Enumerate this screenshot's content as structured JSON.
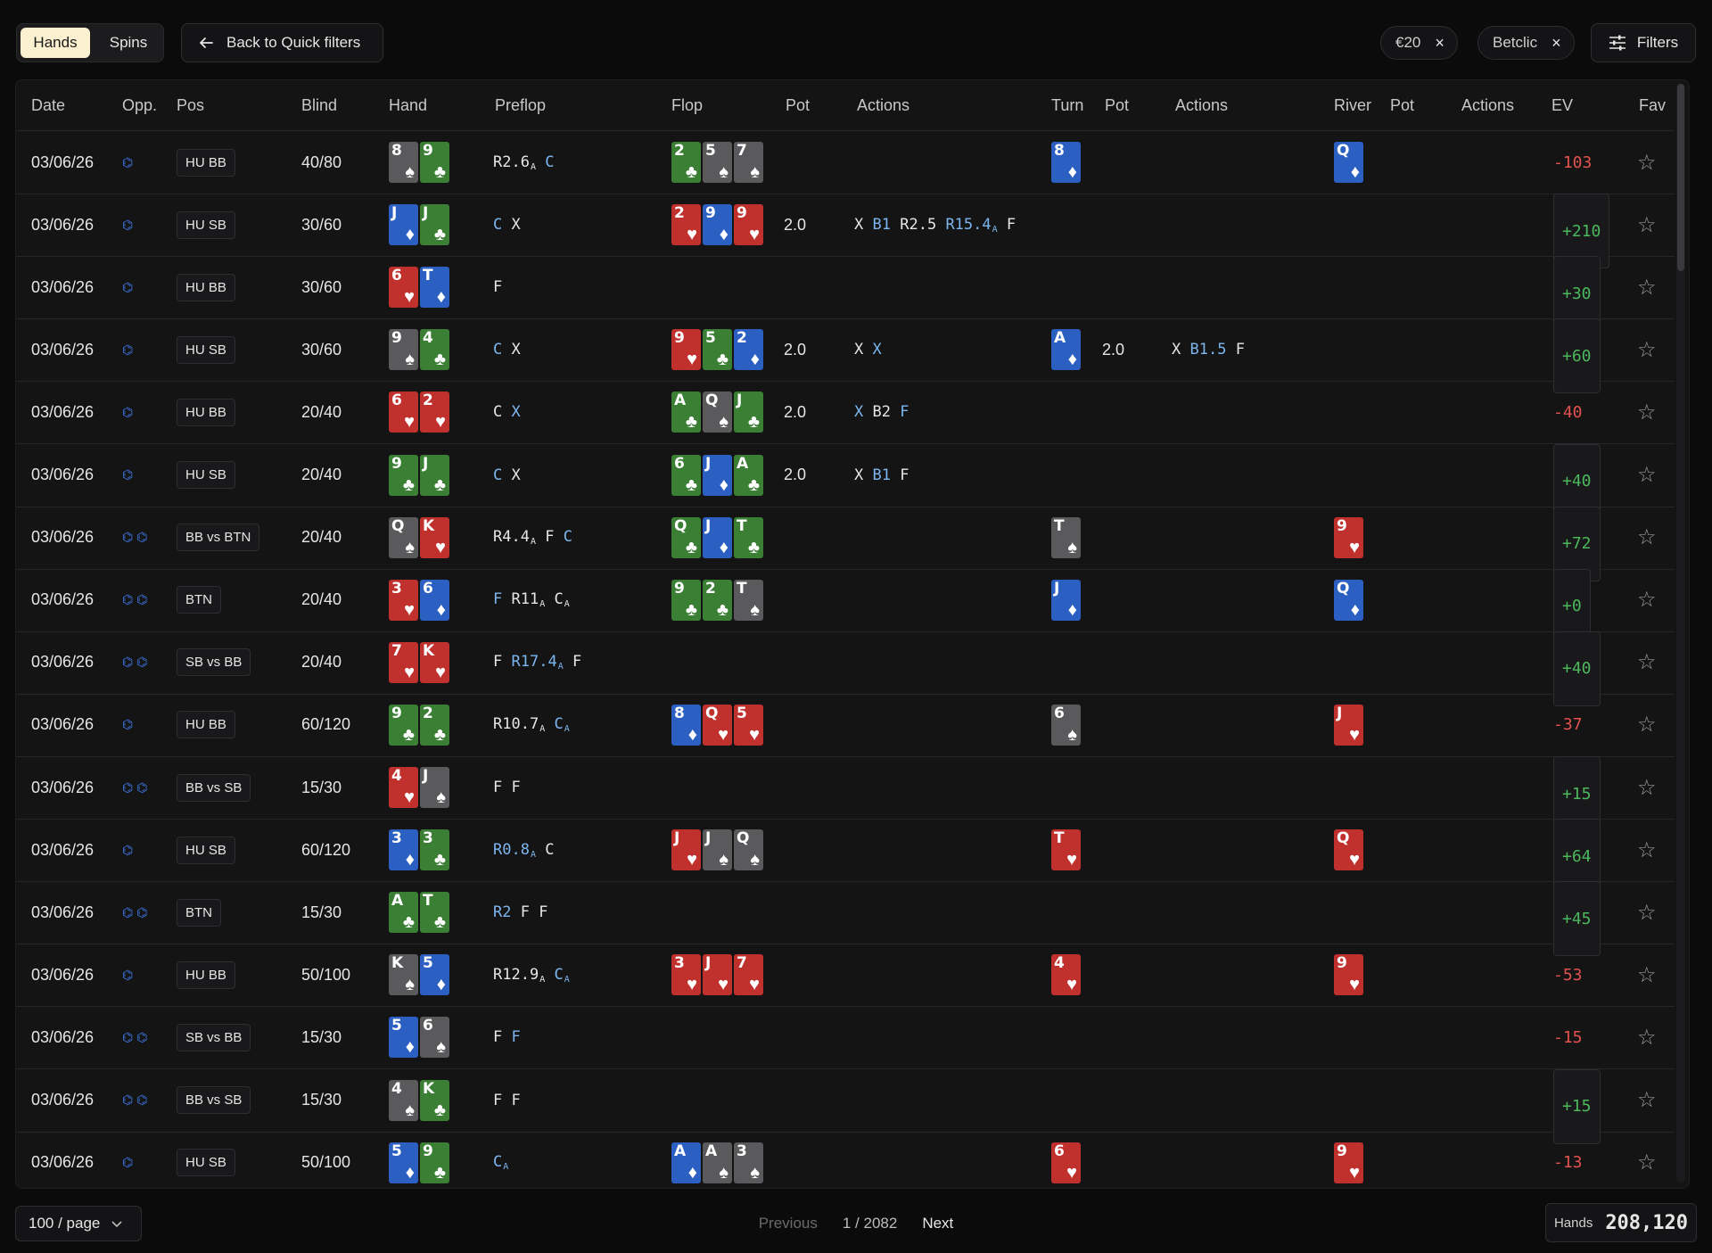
{
  "tabs": [
    {
      "label": "Hands",
      "active": true
    },
    {
      "label": "Spins",
      "active": false
    }
  ],
  "back_label": "Back to Quick filters",
  "chips": [
    {
      "label": "€20"
    },
    {
      "label": "Betclic"
    }
  ],
  "filters_label": "Filters",
  "columns": [
    "Date",
    "Opp.",
    "Pos",
    "Blind",
    "Hand",
    "Preflop",
    "Flop",
    "Pot",
    "Actions",
    "Turn",
    "Pot",
    "Actions",
    "River",
    "Pot",
    "Actions",
    "EV",
    "Fav"
  ],
  "rows": [
    {
      "date": "03/06/26",
      "opp": 1,
      "pos": "HU BB",
      "blind": "40/80",
      "hand": [
        "8s",
        "9c"
      ],
      "preflop": [
        [
          "R2.6",
          "w",
          "A"
        ],
        [
          "C",
          "b"
        ]
      ],
      "flop": [
        "2c",
        "5s",
        "7s"
      ],
      "flop_pot": "",
      "flop_act": [],
      "turn": [
        "8d"
      ],
      "turn_pot": "",
      "turn_act": [],
      "river": [
        "Qd"
      ],
      "ev": "-103"
    },
    {
      "date": "03/06/26",
      "opp": 1,
      "pos": "HU SB",
      "blind": "30/60",
      "hand": [
        "Jd",
        "Jc"
      ],
      "preflop": [
        [
          "C",
          "b"
        ],
        [
          "X",
          "w"
        ]
      ],
      "flop": [
        "2h",
        "9d",
        "9h"
      ],
      "flop_pot": "2.0",
      "flop_act": [
        [
          "X",
          "w"
        ],
        [
          "B1",
          "b"
        ],
        [
          "R2.5",
          "w"
        ],
        [
          "R15.4",
          "b",
          "A"
        ],
        [
          "F",
          "w"
        ]
      ],
      "turn": [],
      "turn_pot": "",
      "turn_act": [],
      "river": [],
      "ev": "+210"
    },
    {
      "date": "03/06/26",
      "opp": 1,
      "pos": "HU BB",
      "blind": "30/60",
      "hand": [
        "6h",
        "Td"
      ],
      "preflop": [
        [
          "F",
          "w"
        ]
      ],
      "flop": [],
      "flop_pot": "",
      "flop_act": [],
      "turn": [],
      "turn_pot": "",
      "turn_act": [],
      "river": [],
      "ev": "+30"
    },
    {
      "date": "03/06/26",
      "opp": 1,
      "pos": "HU SB",
      "blind": "30/60",
      "hand": [
        "9s",
        "4c"
      ],
      "preflop": [
        [
          "C",
          "b"
        ],
        [
          "X",
          "w"
        ]
      ],
      "flop": [
        "9h",
        "5c",
        "2d"
      ],
      "flop_pot": "2.0",
      "flop_act": [
        [
          "X",
          "w"
        ],
        [
          "X",
          "b"
        ]
      ],
      "turn": [
        "Ad"
      ],
      "turn_pot": "2.0",
      "turn_act": [
        [
          "X",
          "w"
        ],
        [
          "B1.5",
          "b"
        ],
        [
          "F",
          "w"
        ]
      ],
      "river": [],
      "ev": "+60"
    },
    {
      "date": "03/06/26",
      "opp": 1,
      "pos": "HU BB",
      "blind": "20/40",
      "hand": [
        "6h",
        "2h"
      ],
      "preflop": [
        [
          "C",
          "w"
        ],
        [
          "X",
          "b"
        ]
      ],
      "flop": [
        "Ac",
        "Qs",
        "Jc"
      ],
      "flop_pot": "2.0",
      "flop_act": [
        [
          "X",
          "b"
        ],
        [
          "B2",
          "w"
        ],
        [
          "F",
          "b"
        ]
      ],
      "turn": [],
      "turn_pot": "",
      "turn_act": [],
      "river": [],
      "ev": "-40"
    },
    {
      "date": "03/06/26",
      "opp": 1,
      "pos": "HU SB",
      "blind": "20/40",
      "hand": [
        "9c",
        "Jc"
      ],
      "preflop": [
        [
          "C",
          "b"
        ],
        [
          "X",
          "w"
        ]
      ],
      "flop": [
        "6c",
        "Jd",
        "Ac"
      ],
      "flop_pot": "2.0",
      "flop_act": [
        [
          "X",
          "w"
        ],
        [
          "B1",
          "b"
        ],
        [
          "F",
          "w"
        ]
      ],
      "turn": [],
      "turn_pot": "",
      "turn_act": [],
      "river": [],
      "ev": "+40"
    },
    {
      "date": "03/06/26",
      "opp": 2,
      "pos": "BB vs BTN",
      "blind": "20/40",
      "hand": [
        "Qs",
        "Kh"
      ],
      "preflop": [
        [
          "R4.4",
          "w",
          "A"
        ],
        [
          "F",
          "w"
        ],
        [
          "C",
          "b"
        ]
      ],
      "flop": [
        "Qc",
        "Jd",
        "Tc"
      ],
      "flop_pot": "",
      "flop_act": [],
      "turn": [
        "Ts"
      ],
      "turn_pot": "",
      "turn_act": [],
      "river": [
        "9h"
      ],
      "ev": "+72"
    },
    {
      "date": "03/06/26",
      "opp": 2,
      "pos": "BTN",
      "blind": "20/40",
      "hand": [
        "3h",
        "6d"
      ],
      "preflop": [
        [
          "F",
          "b"
        ],
        [
          "R11",
          "w",
          "A"
        ],
        [
          "C",
          "w",
          "A"
        ]
      ],
      "flop": [
        "9c",
        "2c",
        "Ts"
      ],
      "flop_pot": "",
      "flop_act": [],
      "turn": [
        "Jd"
      ],
      "turn_pot": "",
      "turn_act": [],
      "river": [
        "Qd"
      ],
      "ev": "+0"
    },
    {
      "date": "03/06/26",
      "opp": 2,
      "pos": "SB vs BB",
      "blind": "20/40",
      "hand": [
        "7h",
        "Kh"
      ],
      "preflop": [
        [
          "F",
          "w"
        ],
        [
          "R17.4",
          "b",
          "A"
        ],
        [
          "F",
          "w"
        ]
      ],
      "flop": [],
      "flop_pot": "",
      "flop_act": [],
      "turn": [],
      "turn_pot": "",
      "turn_act": [],
      "river": [],
      "ev": "+40"
    },
    {
      "date": "03/06/26",
      "opp": 1,
      "pos": "HU BB",
      "blind": "60/120",
      "hand": [
        "9c",
        "2c"
      ],
      "preflop": [
        [
          "R10.7",
          "w",
          "A"
        ],
        [
          "C",
          "b",
          "A"
        ]
      ],
      "flop": [
        "8d",
        "Qh",
        "5h"
      ],
      "flop_pot": "",
      "flop_act": [],
      "turn": [
        "6s"
      ],
      "turn_pot": "",
      "turn_act": [],
      "river": [
        "Jh"
      ],
      "ev": "-37"
    },
    {
      "date": "03/06/26",
      "opp": 2,
      "pos": "BB vs SB",
      "blind": "15/30",
      "hand": [
        "4h",
        "Js"
      ],
      "preflop": [
        [
          "F",
          "w"
        ],
        [
          "F",
          "w"
        ]
      ],
      "flop": [],
      "flop_pot": "",
      "flop_act": [],
      "turn": [],
      "turn_pot": "",
      "turn_act": [],
      "river": [],
      "ev": "+15"
    },
    {
      "date": "03/06/26",
      "opp": 1,
      "pos": "HU SB",
      "blind": "60/120",
      "hand": [
        "3d",
        "3c"
      ],
      "preflop": [
        [
          "R0.8",
          "b",
          "A"
        ],
        [
          "C",
          "w"
        ]
      ],
      "flop": [
        "Jh",
        "Js",
        "Qs"
      ],
      "flop_pot": "",
      "flop_act": [],
      "turn": [
        "Th"
      ],
      "turn_pot": "",
      "turn_act": [],
      "river": [
        "Qh"
      ],
      "ev": "+64"
    },
    {
      "date": "03/06/26",
      "opp": 2,
      "pos": "BTN",
      "blind": "15/30",
      "hand": [
        "Ac",
        "Tc"
      ],
      "preflop": [
        [
          "R2",
          "b"
        ],
        [
          "F",
          "w"
        ],
        [
          "F",
          "w"
        ]
      ],
      "flop": [],
      "flop_pot": "",
      "flop_act": [],
      "turn": [],
      "turn_pot": "",
      "turn_act": [],
      "river": [],
      "ev": "+45"
    },
    {
      "date": "03/06/26",
      "opp": 1,
      "pos": "HU BB",
      "blind": "50/100",
      "hand": [
        "Ks",
        "5d"
      ],
      "preflop": [
        [
          "R12.9",
          "w",
          "A"
        ],
        [
          "C",
          "b",
          "A"
        ]
      ],
      "flop": [
        "3h",
        "Jh",
        "7h"
      ],
      "flop_pot": "",
      "flop_act": [],
      "turn": [
        "4h"
      ],
      "turn_pot": "",
      "turn_act": [],
      "river": [
        "9h"
      ],
      "ev": "-53"
    },
    {
      "date": "03/06/26",
      "opp": 2,
      "pos": "SB vs BB",
      "blind": "15/30",
      "hand": [
        "5d",
        "6s"
      ],
      "preflop": [
        [
          "F",
          "w"
        ],
        [
          "F",
          "b"
        ]
      ],
      "flop": [],
      "flop_pot": "",
      "flop_act": [],
      "turn": [],
      "turn_pot": "",
      "turn_act": [],
      "river": [],
      "ev": "-15"
    },
    {
      "date": "03/06/26",
      "opp": 2,
      "pos": "BB vs SB",
      "blind": "15/30",
      "hand": [
        "4s",
        "Kc"
      ],
      "preflop": [
        [
          "F",
          "w"
        ],
        [
          "F",
          "w"
        ]
      ],
      "flop": [],
      "flop_pot": "",
      "flop_act": [],
      "turn": [],
      "turn_pot": "",
      "turn_act": [],
      "river": [],
      "ev": "+15"
    },
    {
      "date": "03/06/26",
      "opp": 1,
      "pos": "HU SB",
      "blind": "50/100",
      "hand": [
        "5d",
        "9c"
      ],
      "preflop": [
        [
          "C",
          "b",
          "A"
        ]
      ],
      "flop": [
        "Ad",
        "As",
        "3s"
      ],
      "flop_pot": "",
      "flop_act": [],
      "turn": [
        "6h"
      ],
      "turn_pot": "",
      "turn_act": [],
      "river": [
        "9h"
      ],
      "ev": "-13"
    }
  ],
  "footer": {
    "per_page": "100 / page",
    "previous": "Previous",
    "page_info": "1 / 2082",
    "next": "Next",
    "hands_label": "Hands",
    "hands_count": "208,120"
  },
  "icons": {
    "back": "arrow-left-icon",
    "close": "close-icon",
    "filters": "sliders-icon",
    "star": "star-icon",
    "opp": "opponent-icon",
    "chevron": "chevron-down-icon"
  },
  "colors": {
    "accent": "#fbf0cf",
    "positive": "#4cb85d",
    "negative": "#e2524e",
    "action_highlight": "#7db6ef",
    "hearts": "#c0302d",
    "diamonds": "#2b60c2",
    "clubs": "#3a7f34",
    "spades": "#5a5a5d"
  }
}
